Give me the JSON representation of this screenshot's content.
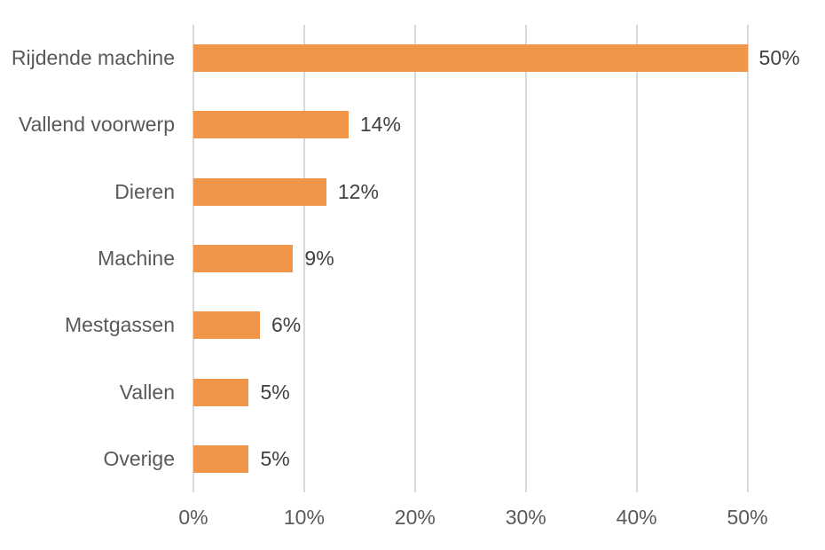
{
  "chart_data": {
    "type": "bar",
    "orientation": "horizontal",
    "title": "",
    "categories": [
      "Rijdende machine",
      "Vallend voorwerp",
      "Dieren",
      "Machine",
      "Mestgassen",
      "Vallen",
      "Overige"
    ],
    "values": [
      50,
      14,
      12,
      9,
      6,
      5,
      5
    ],
    "data_labels": [
      "50%",
      "14%",
      "12%",
      "9%",
      "6%",
      "5%",
      "5%"
    ],
    "x_ticks": [
      0,
      10,
      20,
      30,
      40,
      50
    ],
    "x_tick_labels": [
      "0%",
      "10%",
      "20%",
      "30%",
      "40%",
      "50%"
    ],
    "xlim": [
      0,
      55
    ],
    "xlabel": "",
    "ylabel": "",
    "grid": "vertical-major-only",
    "legend": "none",
    "colors": {
      "bar": "#F0964B",
      "gridline": "#D9D9D9",
      "axis_text": "#595959",
      "data_label_text": "#404040",
      "background": "#FFFFFF"
    }
  }
}
